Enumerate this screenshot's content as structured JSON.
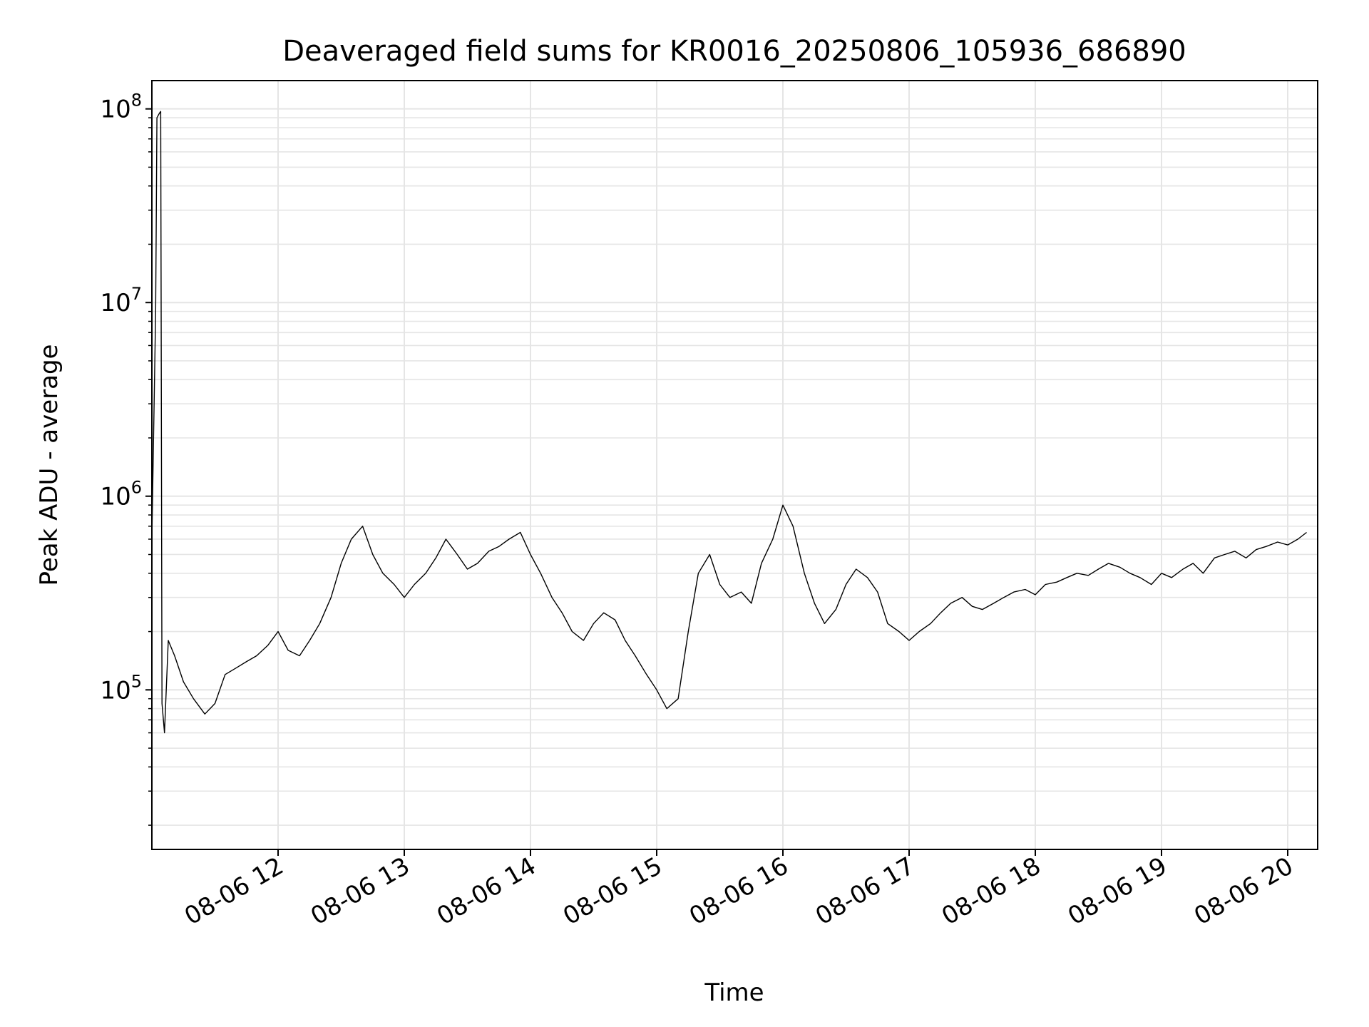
{
  "chart_data": {
    "type": "line",
    "title": "Deaveraged field sums for KR0016_20250806_105936_686890",
    "xlabel": "Time",
    "ylabel": "Peak ADU - average",
    "y_scale": "log",
    "x_range": [
      "2025-08-06 11:00",
      "2025-08-06 20:15"
    ],
    "ylim": [
      15000,
      140000000
    ],
    "y_ticks": [
      {
        "base": "10",
        "exp": "5",
        "value": 100000
      },
      {
        "base": "10",
        "exp": "6",
        "value": 1000000
      },
      {
        "base": "10",
        "exp": "7",
        "value": 10000000
      },
      {
        "base": "10",
        "exp": "8",
        "value": 100000000
      }
    ],
    "x_ticks": [
      "08-06 12",
      "08-06 13",
      "08-06 14",
      "08-06 15",
      "08-06 16",
      "08-06 17",
      "08-06 18",
      "08-06 19",
      "08-06 20"
    ],
    "grid": true,
    "line_color": "#000000",
    "grid_color": "#e5e5e5",
    "series": [
      {
        "x_unit": "hour of 2025-08-06",
        "x": [
          11.0,
          11.03,
          11.04,
          11.06,
          11.07,
          11.08,
          11.1,
          11.13,
          11.18,
          11.25,
          11.33,
          11.42,
          11.5,
          11.58,
          11.67,
          11.75,
          11.83,
          11.92,
          12.0,
          12.08,
          12.17,
          12.25,
          12.33,
          12.42,
          12.5,
          12.58,
          12.67,
          12.75,
          12.83,
          12.92,
          13.0,
          13.08,
          13.17,
          13.25,
          13.33,
          13.42,
          13.5,
          13.58,
          13.67,
          13.75,
          13.83,
          13.92,
          14.0,
          14.08,
          14.17,
          14.25,
          14.33,
          14.42,
          14.5,
          14.58,
          14.67,
          14.75,
          14.83,
          14.92,
          15.0,
          15.08,
          15.17,
          15.25,
          15.33,
          15.42,
          15.5,
          15.58,
          15.67,
          15.75,
          15.83,
          15.92,
          16.0,
          16.08,
          16.17,
          16.25,
          16.33,
          16.42,
          16.5,
          16.58,
          16.67,
          16.75,
          16.83,
          16.92,
          17.0,
          17.08,
          17.17,
          17.25,
          17.33,
          17.42,
          17.5,
          17.58,
          17.67,
          17.75,
          17.83,
          17.92,
          18.0,
          18.08,
          18.17,
          18.25,
          18.33,
          18.42,
          18.5,
          18.58,
          18.67,
          18.75,
          18.83,
          18.92,
          19.0,
          19.08,
          19.17,
          19.25,
          19.33,
          19.42,
          19.5,
          19.58,
          19.67,
          19.75,
          19.83,
          19.92,
          20.0,
          20.08,
          20.15
        ],
        "y": [
          600000,
          9000000,
          90000000,
          95000000,
          97000000,
          85000,
          60000,
          180000,
          150000,
          110000,
          90000,
          75000,
          85000,
          120000,
          130000,
          140000,
          150000,
          170000,
          200000,
          160000,
          150000,
          180000,
          220000,
          300000,
          450000,
          600000,
          700000,
          500000,
          400000,
          350000,
          300000,
          350000,
          400000,
          480000,
          600000,
          500000,
          420000,
          450000,
          520000,
          550000,
          600000,
          650000,
          500000,
          400000,
          300000,
          250000,
          200000,
          180000,
          220000,
          250000,
          230000,
          180000,
          150000,
          120000,
          100000,
          80000,
          90000,
          200000,
          400000,
          500000,
          350000,
          300000,
          320000,
          280000,
          450000,
          600000,
          900000,
          700000,
          400000,
          280000,
          220000,
          260000,
          350000,
          420000,
          380000,
          320000,
          220000,
          200000,
          180000,
          200000,
          220000,
          250000,
          280000,
          300000,
          270000,
          260000,
          280000,
          300000,
          320000,
          330000,
          310000,
          350000,
          360000,
          380000,
          400000,
          390000,
          420000,
          450000,
          430000,
          400000,
          380000,
          350000,
          400000,
          380000,
          420000,
          450000,
          400000,
          480000,
          500000,
          520000,
          480000,
          530000,
          550000,
          580000,
          560000,
          600000,
          650000
        ]
      }
    ]
  }
}
